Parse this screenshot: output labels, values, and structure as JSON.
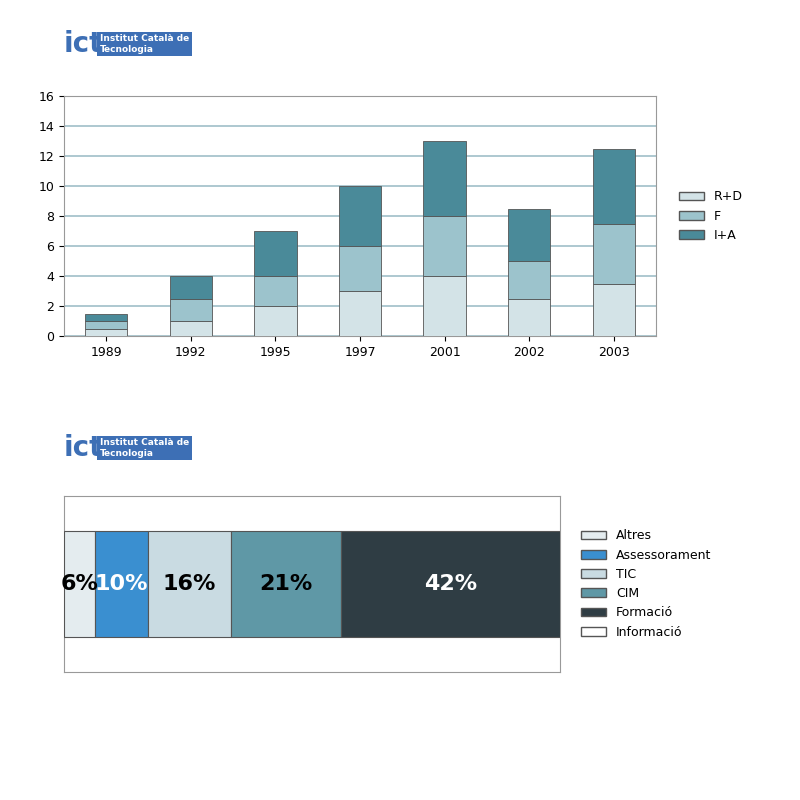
{
  "chart_data": [
    {
      "type": "bar",
      "stacked": true,
      "logo_text": [
        "ict",
        "Institut Català de",
        "Tecnologia"
      ],
      "categories": [
        "1989",
        "1992",
        "1995",
        "1997",
        "2001",
        "2002",
        "2003"
      ],
      "series": [
        {
          "name": "R+D",
          "color": "#d3e3e7",
          "values": [
            0.5,
            1,
            2,
            3,
            4,
            2.5,
            3.5
          ]
        },
        {
          "name": "F",
          "color": "#9cc3cc",
          "values": [
            0.5,
            1.5,
            2,
            3,
            4,
            2.5,
            4
          ]
        },
        {
          "name": "I+A",
          "color": "#4a8a99",
          "values": [
            0.5,
            1.5,
            3,
            4,
            5,
            3.5,
            5
          ]
        }
      ],
      "ylim": [
        0,
        16
      ],
      "yticks": [
        0,
        2,
        4,
        6,
        8,
        10,
        12,
        14,
        16
      ],
      "grid": true,
      "legend": "right"
    },
    {
      "type": "bar",
      "stacked": true,
      "orientation": "horizontal",
      "logo_text": [
        "ict",
        "Institut Català de",
        "Tecnologia"
      ],
      "categories": [
        null
      ],
      "series": [
        {
          "name": "Altres",
          "color": "#e4ecef",
          "values": [
            6
          ],
          "value_labels": [
            "6%"
          ]
        },
        {
          "name": "Assessorament",
          "color": "#3a8fd0",
          "values": [
            10
          ],
          "value_labels": [
            "10%"
          ]
        },
        {
          "name": "TIC",
          "color": "#c9dbe2",
          "values": [
            16
          ],
          "value_labels": [
            "16%"
          ]
        },
        {
          "name": "CIM",
          "color": "#5f98a6",
          "values": [
            21
          ],
          "value_labels": [
            "21%"
          ]
        },
        {
          "name": "Formació",
          "color": "#2f3d44",
          "values": [
            42
          ],
          "value_labels": [
            "42%"
          ]
        },
        {
          "name": "Informació",
          "color": "#ffffff",
          "values": [
            null
          ]
        }
      ],
      "xlim": [
        0,
        95
      ],
      "data_labels": true,
      "tick_labels": false,
      "legend": "right"
    }
  ]
}
